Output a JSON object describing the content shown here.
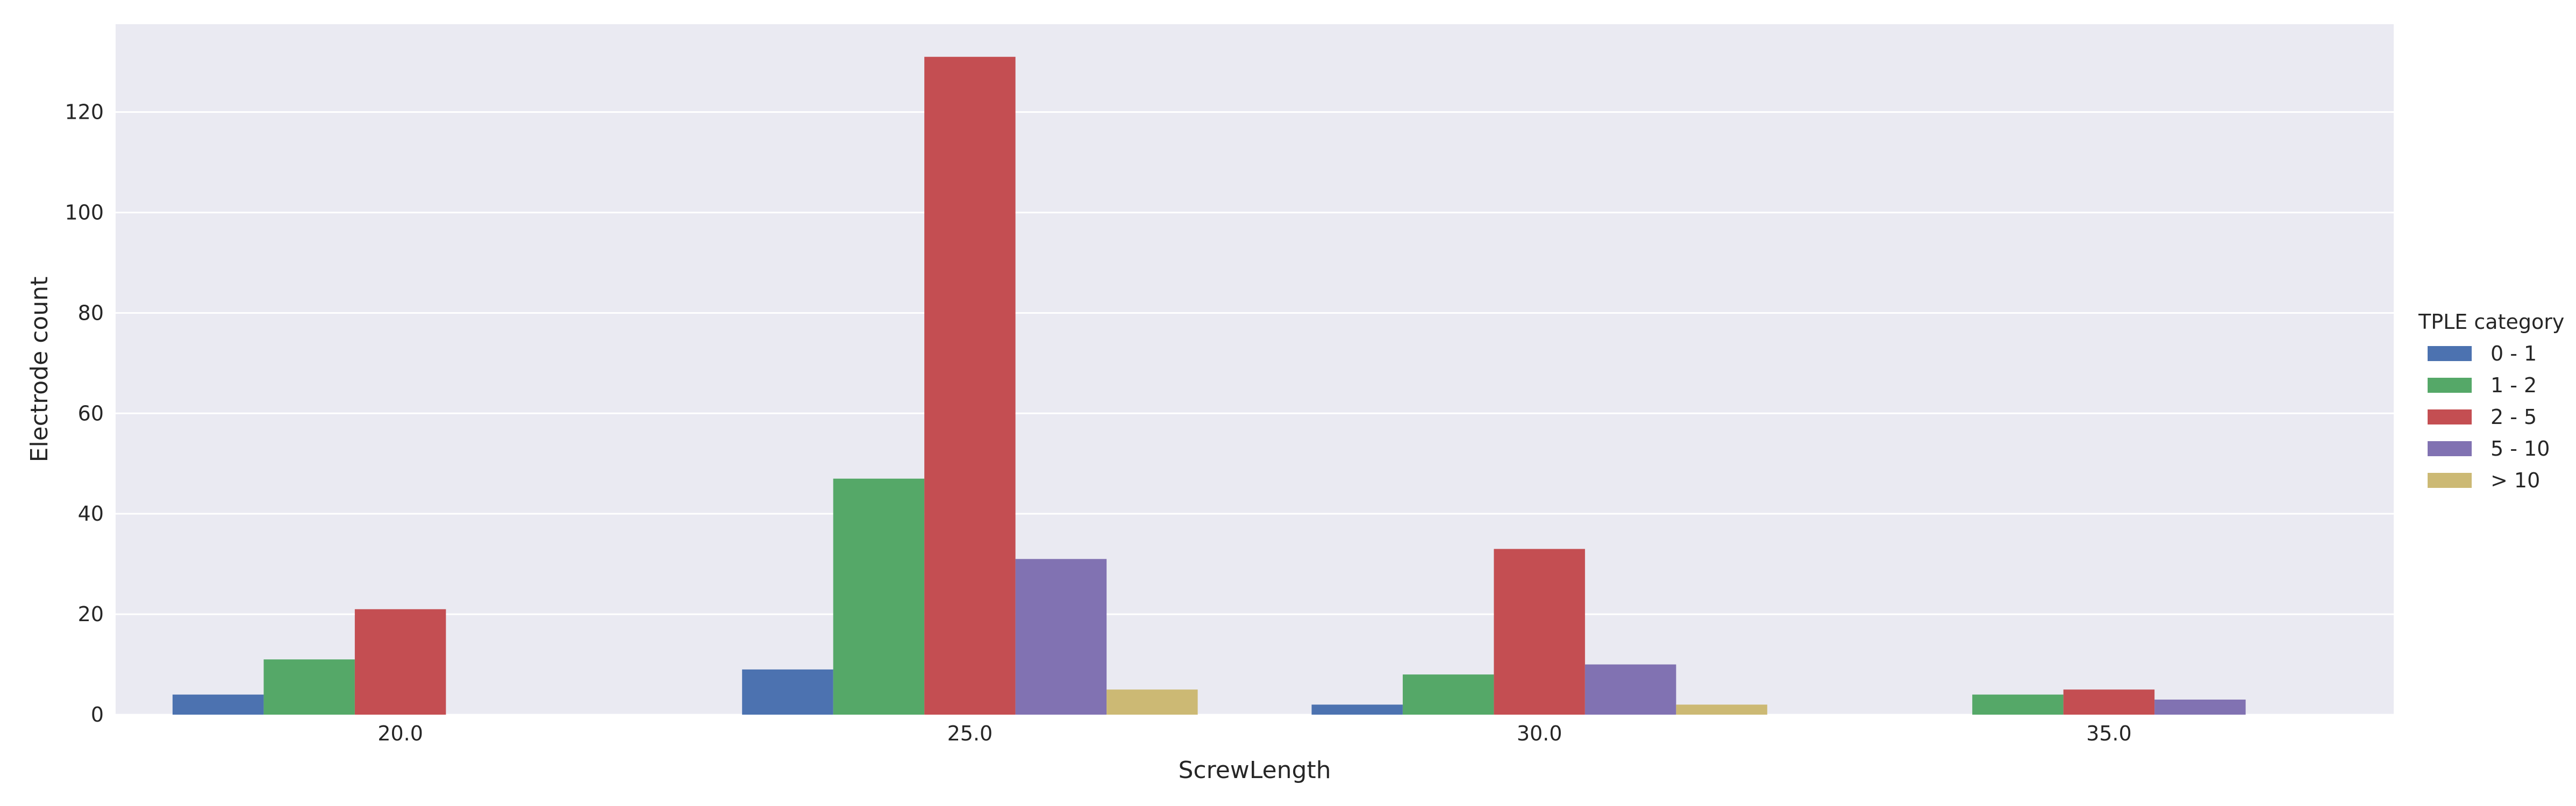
{
  "chart_data": {
    "type": "bar",
    "title": "",
    "xlabel": "ScrewLength",
    "ylabel": "Electrode count",
    "categories": [
      "20.0",
      "25.0",
      "30.0",
      "35.0"
    ],
    "series": [
      {
        "name": "0 - 1",
        "color": "#4c72b0",
        "values": [
          4,
          9,
          2,
          0
        ]
      },
      {
        "name": "1 - 2",
        "color": "#55a868",
        "values": [
          11,
          47,
          8,
          4
        ]
      },
      {
        "name": "2 - 5",
        "color": "#c44e52",
        "values": [
          21,
          131,
          33,
          5
        ]
      },
      {
        "name": "5 - 10",
        "color": "#8172b2",
        "values": [
          0,
          31,
          10,
          3
        ]
      },
      {
        "name": "> 10",
        "color": "#ccb974",
        "values": [
          0,
          5,
          2,
          0
        ]
      }
    ],
    "ylim": [
      0,
      137.5
    ],
    "yticks": [
      0,
      20,
      40,
      60,
      80,
      100,
      120
    ],
    "grid": true,
    "legend": {
      "title": "TPLE category",
      "placement": "right"
    },
    "colors": {
      "plot_background": "#eaeaf2",
      "grid": "#ffffff"
    }
  }
}
